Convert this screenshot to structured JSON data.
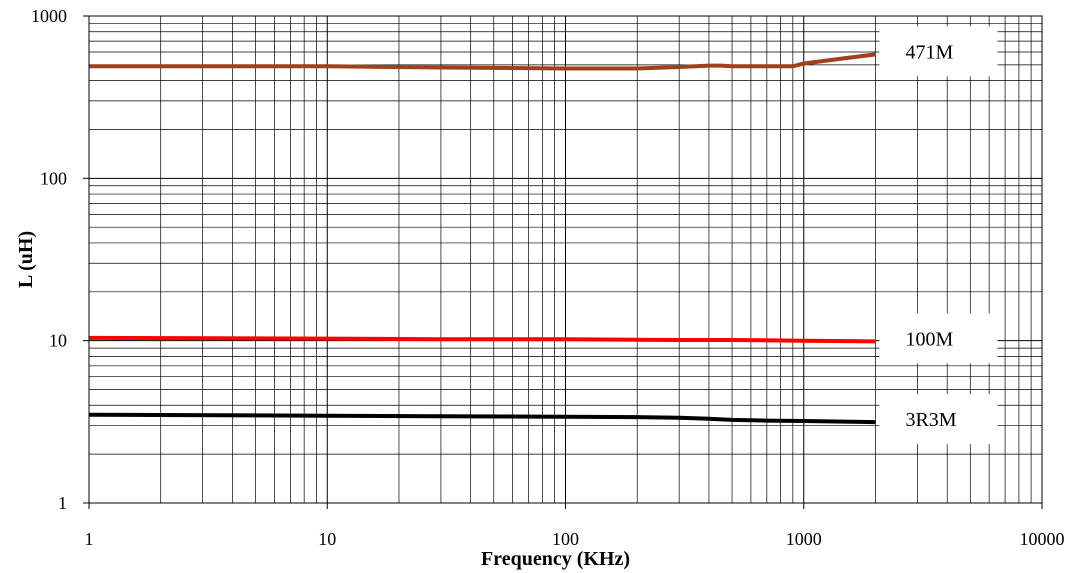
{
  "chart_data": {
    "type": "line",
    "title": "",
    "xlabel": "Frequency (KHz)",
    "ylabel": "L (uH)",
    "xscale": "log",
    "yscale": "log",
    "xlim": [
      1,
      10000
    ],
    "ylim": [
      1,
      1000
    ],
    "grid": true,
    "legend": "inline-right",
    "x_ticks": [
      1,
      10,
      100,
      1000,
      10000
    ],
    "x_tick_labels": [
      "1",
      "10",
      "100",
      "1000",
      "10000"
    ],
    "y_ticks": [
      1,
      10,
      100,
      1000
    ],
    "y_tick_labels": [
      "1",
      "10",
      "100",
      "1000"
    ],
    "series": [
      {
        "name": "471M",
        "color": "#a0401c",
        "x": [
          1,
          10,
          30,
          100,
          200,
          300,
          400,
          450,
          500,
          700,
          900,
          1000,
          1500,
          2000
        ],
        "y": [
          490,
          490,
          482,
          475,
          475,
          485,
          495,
          495,
          490,
          490,
          490,
          510,
          550,
          580
        ]
      },
      {
        "name": "100M",
        "color": "#ff0000",
        "x": [
          1,
          10,
          30,
          100,
          300,
          500,
          1000,
          2000
        ],
        "y": [
          10.4,
          10.3,
          10.2,
          10.2,
          10.1,
          10.1,
          10.0,
          9.9
        ]
      },
      {
        "name": "3R3M",
        "color": "#000000",
        "x": [
          1,
          10,
          30,
          100,
          200,
          300,
          400,
          500,
          700,
          1000,
          2000
        ],
        "y": [
          3.5,
          3.45,
          3.42,
          3.4,
          3.38,
          3.35,
          3.3,
          3.25,
          3.22,
          3.2,
          3.15
        ]
      }
    ]
  }
}
